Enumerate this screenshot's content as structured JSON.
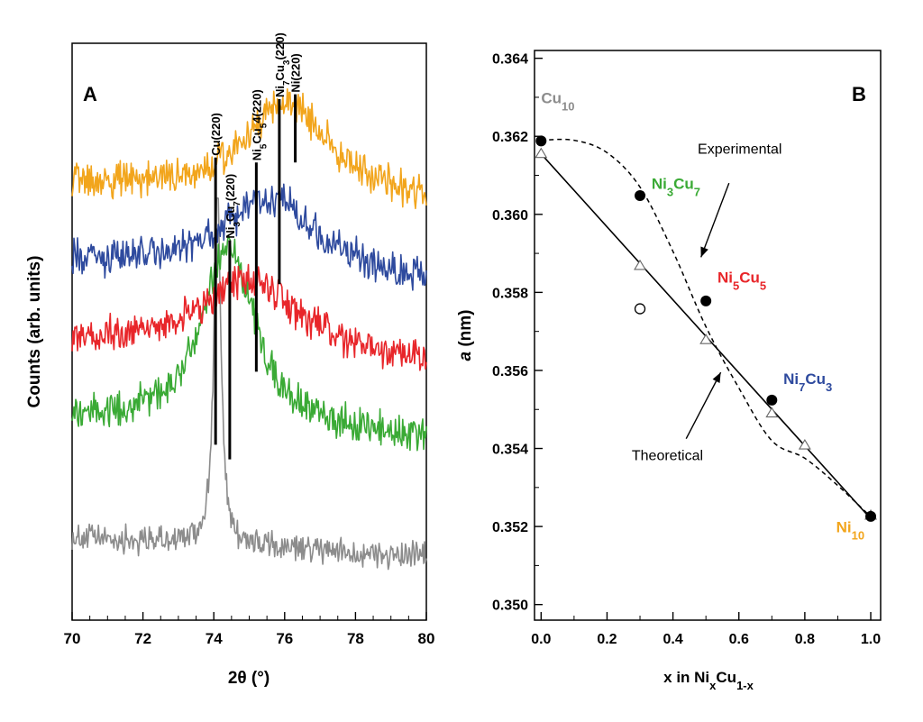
{
  "chart_data": [
    {
      "type": "line",
      "panel_label": "A",
      "xlabel": "2θ (°)",
      "ylabel": "Counts (arb. units)",
      "xlim": [
        70,
        80
      ],
      "x_ticks": [
        "70",
        "72",
        "74",
        "76",
        "78",
        "80"
      ],
      "series": [
        {
          "name": "Cu10",
          "color": "#8c8c8c",
          "baseline": 0.5,
          "peak_2theta": 74.1,
          "peak_height": 3.6,
          "peak_width": 0.12
        },
        {
          "name": "Ni3Cu7",
          "color": "#3aaa35",
          "baseline": 1.7,
          "peak_2theta": 74.4,
          "peak_height": 1.9,
          "peak_width": 0.9
        },
        {
          "name": "Ni5Cu5",
          "color": "#e8262a",
          "baseline": 2.5,
          "peak_2theta": 75.0,
          "peak_height": 0.75,
          "peak_width": 1.6
        },
        {
          "name": "Ni7Cu3",
          "color": "#2e4a9e",
          "baseline": 3.3,
          "peak_2theta": 75.6,
          "peak_height": 0.8,
          "peak_width": 1.6
        },
        {
          "name": "Ni10",
          "color": "#f2a51c",
          "baseline": 4.1,
          "peak_2theta": 76.1,
          "peak_height": 0.95,
          "peak_width": 1.5
        }
      ],
      "reference_lines": [
        {
          "label_html": "Cu(220)",
          "x": 74.05,
          "y_top": 4.4,
          "y_bottom": 1.45
        },
        {
          "label_html": "Ni<tspan baseline-shift='sub' font-size='10'>3</tspan>Cu<tspan baseline-shift='sub' font-size='10'>7</tspan>(220)",
          "x": 74.45,
          "y_top": 3.55,
          "y_bottom": 1.3
        },
        {
          "label_html": "Ni<tspan baseline-shift='sub' font-size='10'>5</tspan>Cu<tspan baseline-shift='sub' font-size='10'>5</tspan>4(220)",
          "x": 75.2,
          "y_top": 4.35,
          "y_bottom": 2.2
        },
        {
          "label_html": "Ni<tspan baseline-shift='sub' font-size='10'>7</tspan>Cu<tspan baseline-shift='sub' font-size='10'>3</tspan>(220)",
          "x": 75.85,
          "y_top": 5.0,
          "y_bottom": 3.1
        },
        {
          "label_html": "Ni(220)",
          "x": 76.3,
          "y_top": 5.05,
          "y_bottom": 4.35
        }
      ]
    },
    {
      "type": "scatter",
      "panel_label": "B",
      "xlabel_html": "x in Ni<tspan baseline-shift='sub' font-size='13'>x</tspan>Cu<tspan baseline-shift='sub' font-size='13'>1-x</tspan>",
      "ylabel_html": "<tspan font-style='italic'>a</tspan> (nm)",
      "xlim": [
        -0.02,
        1.03
      ],
      "ylim": [
        0.3496,
        0.3642
      ],
      "x_ticks": [
        "0.0",
        "0.2",
        "0.4",
        "0.6",
        "0.8",
        "1.0"
      ],
      "y_ticks": [
        "0.350",
        "0.352",
        "0.354",
        "0.356",
        "0.358",
        "0.360",
        "0.362",
        "0.364"
      ],
      "experimental_points": [
        {
          "x": 0.0,
          "y": 0.36188
        },
        {
          "x": 0.3,
          "y": 0.36048
        },
        {
          "x": 0.5,
          "y": 0.35778
        },
        {
          "x": 0.7,
          "y": 0.35524
        },
        {
          "x": 1.0,
          "y": 0.35226
        }
      ],
      "open_circle_points": [
        {
          "x": 0.3,
          "y": 0.35758
        }
      ],
      "theoretical_points": [
        {
          "x": 0.0,
          "y": 0.36155
        },
        {
          "x": 0.3,
          "y": 0.35868
        },
        {
          "x": 0.5,
          "y": 0.35678
        },
        {
          "x": 0.7,
          "y": 0.3549
        },
        {
          "x": 0.8,
          "y": 0.35408
        },
        {
          "x": 1.0,
          "y": 0.35228
        }
      ],
      "experimental_curve": [
        {
          "x": 0.0,
          "y": 0.3619
        },
        {
          "x": 0.1,
          "y": 0.3619
        },
        {
          "x": 0.2,
          "y": 0.36158
        },
        {
          "x": 0.3,
          "y": 0.3607
        },
        {
          "x": 0.4,
          "y": 0.35905
        },
        {
          "x": 0.5,
          "y": 0.35712
        },
        {
          "x": 0.6,
          "y": 0.35555
        },
        {
          "x": 0.7,
          "y": 0.3542
        },
        {
          "x": 0.8,
          "y": 0.35375
        },
        {
          "x": 0.9,
          "y": 0.35305
        },
        {
          "x": 1.0,
          "y": 0.35225
        }
      ],
      "theoretical_line": [
        {
          "x": 0.0,
          "y": 0.36155
        },
        {
          "x": 1.0,
          "y": 0.3522
        }
      ],
      "point_labels": [
        {
          "html": "Cu<tspan baseline-shift='sub' font-size='13'>10</tspan>",
          "color": "#8c8c8c",
          "x": 0.0,
          "y": 0.36285,
          "anchor": "start"
        },
        {
          "html": "Ni<tspan baseline-shift='sub' font-size='13'>3</tspan>Cu<tspan baseline-shift='sub' font-size='13'>7</tspan>",
          "color": "#3aaa35",
          "x": 0.335,
          "y": 0.36065,
          "anchor": "start"
        },
        {
          "html": "Ni<tspan baseline-shift='sub' font-size='13'>5</tspan>Cu<tspan baseline-shift='sub' font-size='13'>5</tspan>",
          "color": "#e8262a",
          "x": 0.535,
          "y": 0.35825,
          "anchor": "start"
        },
        {
          "html": "Ni<tspan baseline-shift='sub' font-size='13'>7</tspan>Cu<tspan baseline-shift='sub' font-size='13'>3</tspan>",
          "color": "#2e4a9e",
          "x": 0.735,
          "y": 0.35565,
          "anchor": "start"
        },
        {
          "html": "Ni<tspan baseline-shift='sub' font-size='13'>10</tspan>",
          "color": "#f2a51c",
          "x": 0.895,
          "y": 0.35185,
          "anchor": "start"
        }
      ],
      "annotations": [
        {
          "text": "Experimental",
          "x": 0.475,
          "y": 0.36155,
          "anchor": "start",
          "arrow_from": {
            "x": 0.57,
            "y": 0.3608
          },
          "arrow_to": {
            "x": 0.485,
            "y": 0.3589
          }
        },
        {
          "text": "Theoretical",
          "x": 0.275,
          "y": 0.3537,
          "anchor": "start",
          "arrow_from": {
            "x": 0.44,
            "y": 0.35425
          },
          "arrow_to": {
            "x": 0.545,
            "y": 0.35595
          }
        }
      ]
    }
  ]
}
